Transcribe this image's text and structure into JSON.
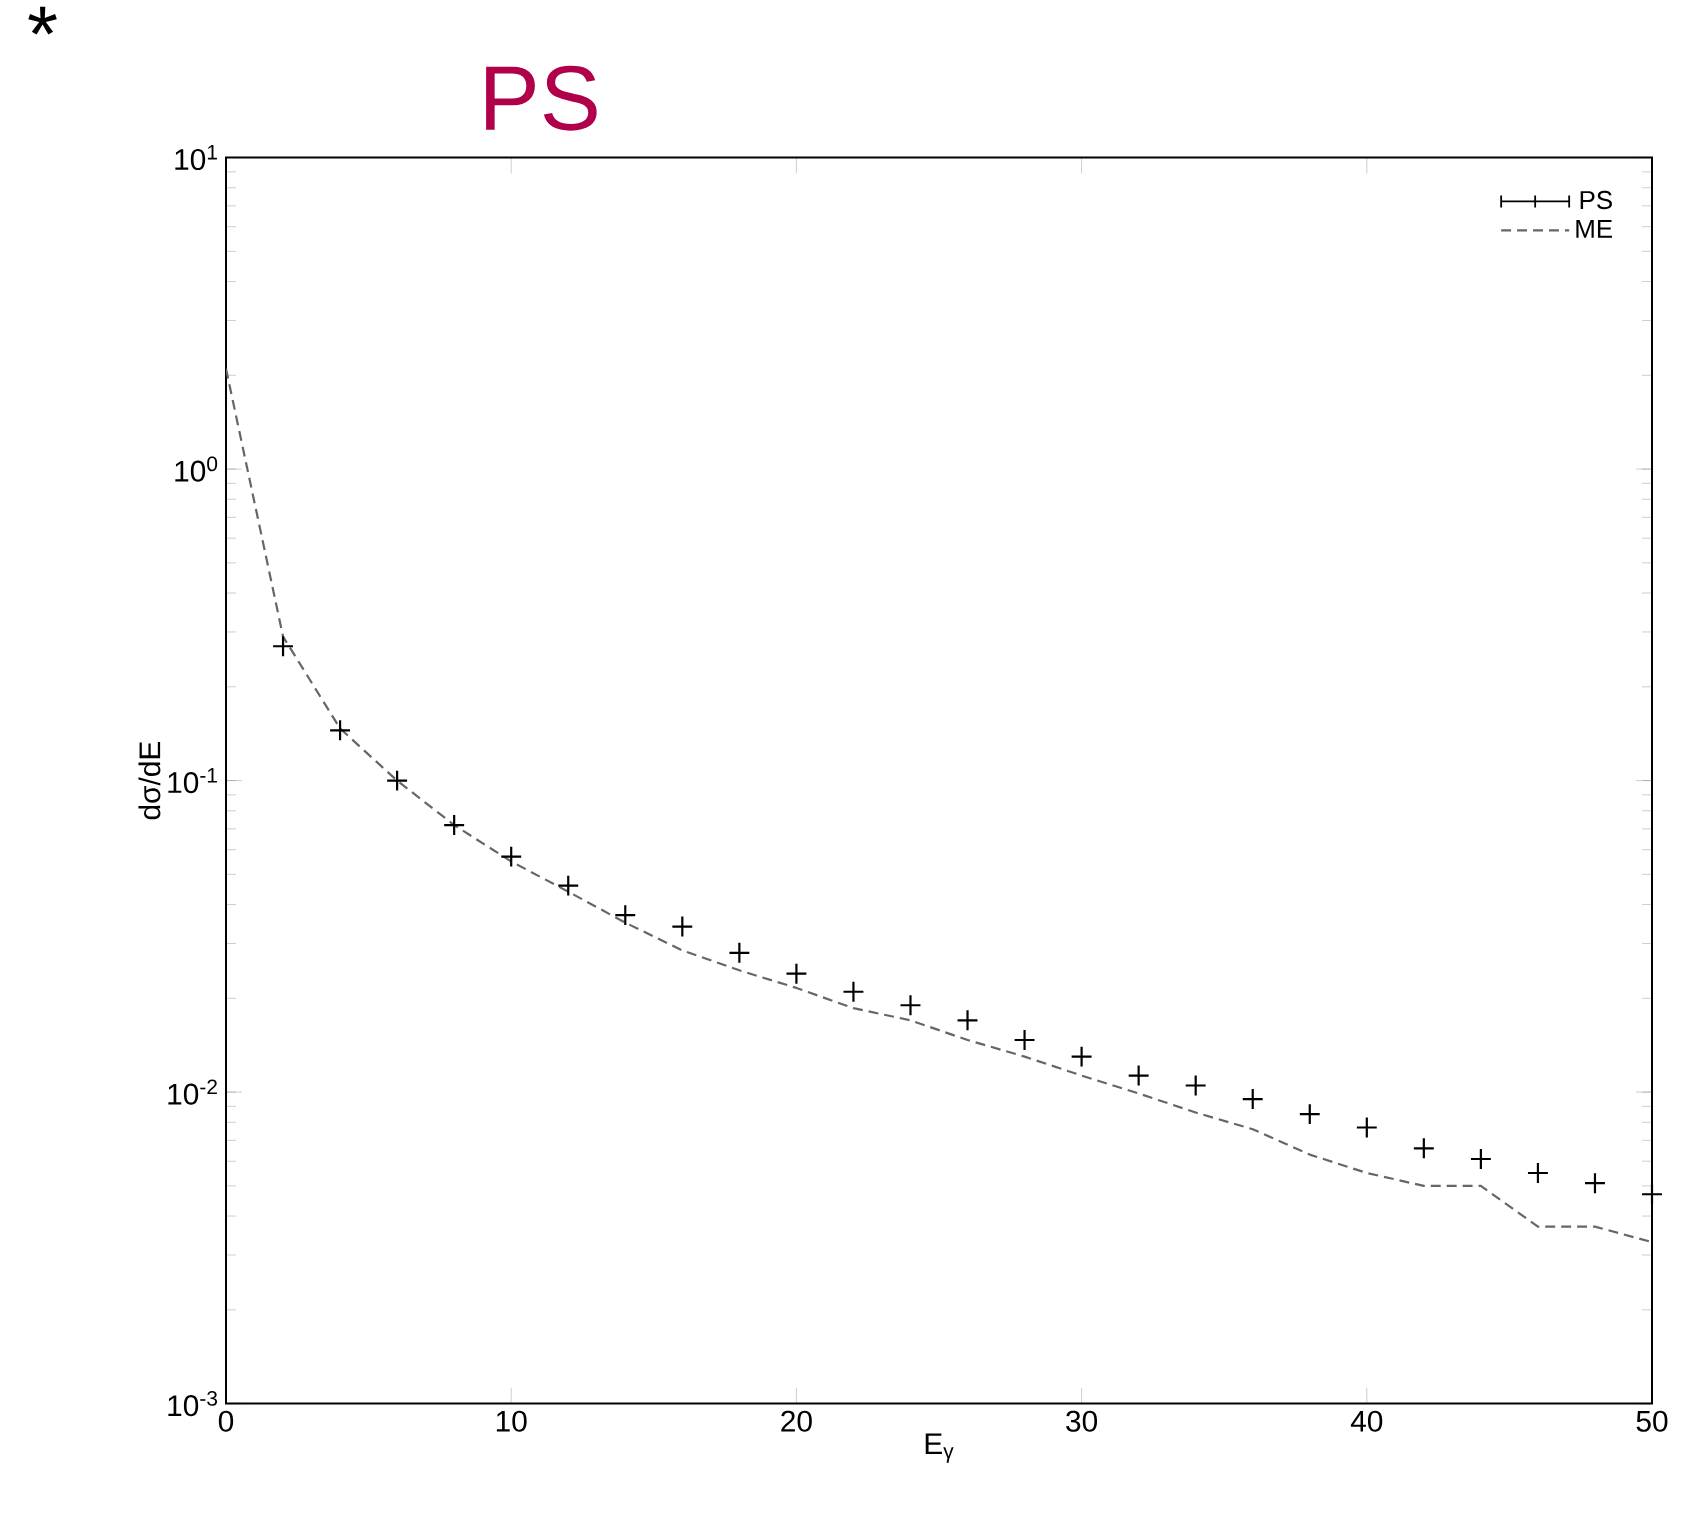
{
  "chart_data": {
    "type": "line",
    "title": "PS",
    "xlabel": "E$_{γ}$",
    "ylabel": "dσ/dE",
    "annotations": [
      "*"
    ],
    "x": [
      0,
      2,
      4,
      6,
      8,
      10,
      12,
      14,
      16,
      18,
      20,
      22,
      24,
      26,
      28,
      30,
      32,
      34,
      36,
      38,
      40,
      42,
      44,
      46,
      48,
      50
    ],
    "series": [
      {
        "name": "PS",
        "type": "scatter",
        "marker": "cross",
        "color": "#000000",
        "x": [
          2,
          4,
          6,
          8,
          10,
          12,
          14,
          16,
          18,
          20,
          22,
          24,
          26,
          28,
          30,
          32,
          34,
          36,
          38,
          40,
          42,
          44,
          46,
          48,
          50
        ],
        "values": [
          0.27,
          0.145,
          0.1,
          0.072,
          0.057,
          0.046,
          0.037,
          0.034,
          0.028,
          0.024,
          0.021,
          0.019,
          0.017,
          0.0147,
          0.013,
          0.0113,
          0.0105,
          0.0095,
          0.0085,
          0.0077,
          0.0066,
          0.0061,
          0.0055,
          0.0051,
          0.0047
        ]
      },
      {
        "name": "ME",
        "marker": "none",
        "line_style": "dashed",
        "color": "#666666",
        "values": [
          2.1,
          0.29,
          0.147,
          0.1,
          0.072,
          0.055,
          0.044,
          0.035,
          0.0285,
          0.0246,
          0.0216,
          0.0186,
          0.017,
          0.0147,
          0.013,
          0.0113,
          0.0099,
          0.0086,
          0.0076,
          0.0063,
          0.0055,
          0.005,
          0.005,
          0.0037,
          0.0037,
          0.0033
        ]
      }
    ],
    "log": "y",
    "legend": "top right",
    "grid": false,
    "xlim": [
      0,
      50
    ],
    "xticks": [
      0,
      10,
      20,
      30,
      40,
      50
    ],
    "ylim": [
      0.001,
      10
    ],
    "yticks": [
      {
        "value": 0.001,
        "label": "10$^{-3}$"
      },
      {
        "value": 0.01,
        "label": "10$^{-2}$"
      },
      {
        "value": 0.1,
        "label": "10$^{-1}$"
      },
      {
        "value": 1,
        "label": "10$^{0}$"
      },
      {
        "value": 10,
        "label": "10$^{1}$"
      }
    ]
  }
}
